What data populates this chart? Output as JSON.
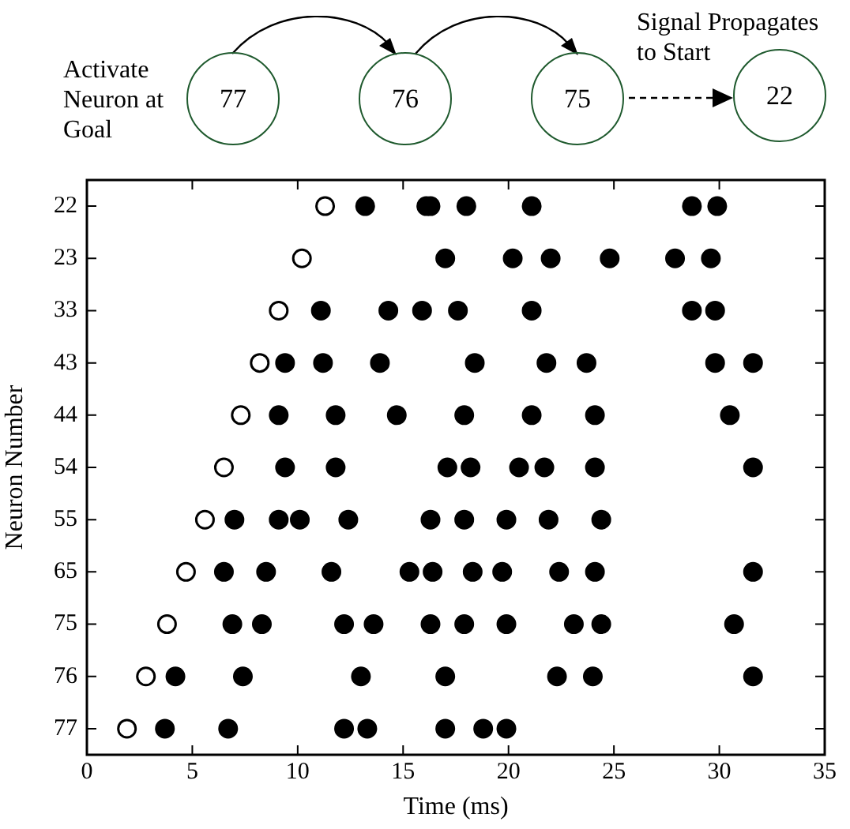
{
  "chart_data": {
    "type": "scatter",
    "xlabel": "Time (ms)",
    "ylabel": "Neuron Number",
    "orientation": "horizontal",
    "categories": [
      "22",
      "23",
      "33",
      "43",
      "44",
      "54",
      "55",
      "65",
      "75",
      "76",
      "77"
    ],
    "xlim": [
      0,
      35
    ],
    "xticks": [
      0,
      5,
      10,
      15,
      20,
      25,
      30,
      35
    ],
    "grid": false,
    "legend": false,
    "marker": "circle",
    "annotations": [
      "Activate Neuron at Goal",
      "77",
      "76",
      "75",
      "22",
      "Signal Propagates to Start"
    ],
    "series": [
      {
        "color": "#ffffff",
        "values": [
          11.3,
          10.2,
          9.1,
          8.2,
          7.3,
          6.5,
          5.6,
          4.7,
          3.8,
          2.8,
          1.9
        ],
        "x": [
          "22",
          "23",
          "33",
          "43",
          "44",
          "54",
          "55",
          "65",
          "75",
          "76",
          "77"
        ]
      },
      {
        "color": "#000000",
        "values": [
          13.2,
          16.1,
          16.3,
          18.0,
          21.1,
          28.7,
          29.9,
          17.0,
          20.2,
          22.0,
          24.8,
          27.9,
          29.6,
          11.1,
          14.3,
          15.9,
          17.6,
          21.1,
          28.7,
          29.8,
          9.4,
          11.2,
          13.9,
          18.4,
          21.8,
          23.7,
          29.8,
          31.6,
          9.1,
          11.8,
          14.7,
          17.9,
          21.1,
          24.1,
          30.5,
          9.4,
          11.8,
          17.1,
          18.2,
          20.5,
          21.7,
          24.1,
          31.6,
          7.0,
          9.1,
          10.1,
          12.4,
          16.3,
          17.9,
          19.9,
          21.9,
          24.4,
          6.5,
          8.5,
          11.6,
          15.3,
          16.4,
          18.3,
          19.7,
          22.4,
          24.1,
          31.6,
          6.9,
          8.3,
          12.2,
          13.6,
          16.3,
          17.9,
          19.9,
          23.1,
          24.4,
          30.7,
          4.2,
          7.4,
          13.0,
          17.0,
          22.3,
          24.0,
          31.6,
          3.7,
          6.7,
          12.2,
          13.3,
          17.0,
          18.8,
          19.9
        ],
        "x": [
          "22",
          "22",
          "22",
          "22",
          "22",
          "22",
          "22",
          "23",
          "23",
          "23",
          "23",
          "23",
          "23",
          "33",
          "33",
          "33",
          "33",
          "33",
          "33",
          "33",
          "43",
          "43",
          "43",
          "43",
          "43",
          "43",
          "43",
          "43",
          "44",
          "44",
          "44",
          "44",
          "44",
          "44",
          "44",
          "54",
          "54",
          "54",
          "54",
          "54",
          "54",
          "54",
          "54",
          "55",
          "55",
          "55",
          "55",
          "55",
          "55",
          "55",
          "55",
          "55",
          "65",
          "65",
          "65",
          "65",
          "65",
          "65",
          "65",
          "65",
          "65",
          "65",
          "75",
          "75",
          "75",
          "75",
          "75",
          "75",
          "75",
          "75",
          "75",
          "75",
          "76",
          "76",
          "76",
          "76",
          "76",
          "76",
          "76",
          "77",
          "77",
          "77",
          "77",
          "77",
          "77",
          "77"
        ]
      }
    ]
  }
}
